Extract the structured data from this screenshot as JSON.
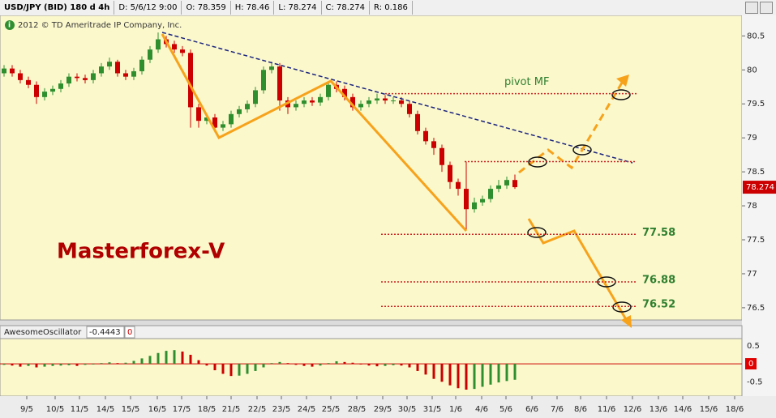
{
  "header": {
    "symbol": "USD/JPY (BID) 180 d 4h",
    "date": "D: 5/6/12 9:00",
    "open": "O: 78.359",
    "high": "H: 78.46",
    "low": "L: 78.274",
    "close": "C: 78.274",
    "range": "R: 0.186"
  },
  "copyright": "2012 © TD Ameritrade IP Company, Inc.",
  "chart_data": [
    {
      "type": "candlestick",
      "watermark": "Masterforex-V",
      "up_color": "#2f8f2f",
      "down_color": "#cc0000",
      "ylim": [
        76.32,
        80.79
      ],
      "yticks": [
        76.5,
        77,
        77.5,
        78,
        78.5,
        79,
        79.5,
        80,
        80.5
      ],
      "xlim": [
        -0.5,
        91.0
      ],
      "xticks": [
        {
          "value": 2.8,
          "label": "9/5"
        },
        {
          "value": 6.3,
          "label": "10/5"
        },
        {
          "value": 9.3,
          "label": "11/5"
        },
        {
          "value": 12.5,
          "label": "14/5"
        },
        {
          "value": 15.6,
          "label": "15/5"
        },
        {
          "value": 18.9,
          "label": "16/5"
        },
        {
          "value": 21.9,
          "label": "17/5"
        },
        {
          "value": 25.0,
          "label": "18/5"
        },
        {
          "value": 28.0,
          "label": "21/5"
        },
        {
          "value": 31.2,
          "label": "22/5"
        },
        {
          "value": 34.2,
          "label": "23/5"
        },
        {
          "value": 37.3,
          "label": "24/5"
        },
        {
          "value": 40.3,
          "label": "25/5"
        },
        {
          "value": 43.5,
          "label": "28/5"
        },
        {
          "value": 46.7,
          "label": "29/5"
        },
        {
          "value": 49.7,
          "label": "30/5"
        },
        {
          "value": 52.8,
          "label": "31/5"
        },
        {
          "value": 55.7,
          "label": "1/6"
        },
        {
          "value": 58.9,
          "label": "4/6"
        },
        {
          "value": 61.9,
          "label": "5/6"
        },
        {
          "value": 65.1,
          "label": "6/6"
        },
        {
          "value": 68.2,
          "label": "7/6"
        },
        {
          "value": 71.1,
          "label": "8/6"
        },
        {
          "value": 74.3,
          "label": "11/6"
        },
        {
          "value": 77.5,
          "label": "12/6"
        },
        {
          "value": 80.7,
          "label": "13/6"
        },
        {
          "value": 83.7,
          "label": "14/6"
        },
        {
          "value": 86.9,
          "label": "15/6"
        },
        {
          "value": 90.1,
          "label": "18/6"
        }
      ],
      "open": [
        79.95,
        80.02,
        79.95,
        79.85,
        79.78,
        79.6,
        79.68,
        79.72,
        79.8,
        79.9,
        79.88,
        79.85,
        79.95,
        80.05,
        80.12,
        79.95,
        79.9,
        79.98,
        80.15,
        80.3,
        80.45,
        80.38,
        80.3,
        80.25,
        79.45,
        79.25,
        79.3,
        79.15,
        79.2,
        79.35,
        79.42,
        79.5,
        79.7,
        80.0,
        80.05,
        79.55,
        79.45,
        79.5,
        79.55,
        79.52,
        79.6,
        79.78,
        79.72,
        79.6,
        79.45,
        79.5,
        79.55,
        79.58,
        79.55,
        79.55,
        79.5,
        79.35,
        79.1,
        78.95,
        78.85,
        78.6,
        78.35,
        78.25,
        77.95,
        78.05,
        78.1,
        78.25,
        78.3,
        78.38
      ],
      "high": [
        80.07,
        80.07,
        80.0,
        79.9,
        79.83,
        79.73,
        79.77,
        79.85,
        79.95,
        79.95,
        79.93,
        80.0,
        80.1,
        80.18,
        80.15,
        80.0,
        80.03,
        80.2,
        80.35,
        80.55,
        80.5,
        80.43,
        80.35,
        80.3,
        79.5,
        79.35,
        79.35,
        79.25,
        79.4,
        79.47,
        79.55,
        79.75,
        80.05,
        80.12,
        80.1,
        79.6,
        79.55,
        79.6,
        79.6,
        79.65,
        79.83,
        79.83,
        79.77,
        79.65,
        79.55,
        79.6,
        79.65,
        79.63,
        79.6,
        79.6,
        79.55,
        79.4,
        79.15,
        79.0,
        78.9,
        78.65,
        78.4,
        78.65,
        78.12,
        78.15,
        78.3,
        78.38,
        78.43,
        78.46
      ],
      "low": [
        79.9,
        79.9,
        79.8,
        79.73,
        79.5,
        79.55,
        79.63,
        79.67,
        79.75,
        79.83,
        79.8,
        79.8,
        79.9,
        80.0,
        79.9,
        79.85,
        79.85,
        79.93,
        80.1,
        80.25,
        80.33,
        80.25,
        80.2,
        79.15,
        79.15,
        79.2,
        79.08,
        79.1,
        79.15,
        79.3,
        79.37,
        79.45,
        79.65,
        79.95,
        79.4,
        79.35,
        79.4,
        79.45,
        79.47,
        79.47,
        79.55,
        79.67,
        79.55,
        79.4,
        79.4,
        79.45,
        79.5,
        79.5,
        79.5,
        79.45,
        79.3,
        79.05,
        78.9,
        78.75,
        78.5,
        78.25,
        78.15,
        77.65,
        77.9,
        78.0,
        78.05,
        78.2,
        78.25,
        78.25
      ],
      "close": [
        80.02,
        79.95,
        79.85,
        79.78,
        79.6,
        79.68,
        79.72,
        79.8,
        79.9,
        79.88,
        79.85,
        79.95,
        80.05,
        80.12,
        79.95,
        79.9,
        79.98,
        80.15,
        80.3,
        80.45,
        80.38,
        80.3,
        80.25,
        79.45,
        79.25,
        79.3,
        79.15,
        79.2,
        79.35,
        79.42,
        79.5,
        79.7,
        80.0,
        80.05,
        79.55,
        79.45,
        79.5,
        79.55,
        79.52,
        79.6,
        79.78,
        79.72,
        79.6,
        79.45,
        79.5,
        79.55,
        79.58,
        79.55,
        79.55,
        79.5,
        79.35,
        79.1,
        78.95,
        78.85,
        78.6,
        78.35,
        78.25,
        77.95,
        78.05,
        78.1,
        78.25,
        78.3,
        78.38,
        78.274
      ],
      "levels": [
        {
          "value": 79.65,
          "label": "pivot MF"
        },
        78.65,
        77.58,
        76.88,
        76.52
      ]
    },
    {
      "type": "bar",
      "title": "AwesomeOscillator",
      "param": "0",
      "up_color": "#2f8f2f",
      "down_color": "#cc0000",
      "ylim": [
        -0.9,
        0.7
      ],
      "yticks": [
        0.5,
        0,
        -0.5
      ],
      "values": [
        -0.03,
        -0.05,
        -0.08,
        -0.06,
        -0.1,
        -0.08,
        -0.06,
        -0.05,
        -0.04,
        -0.06,
        -0.03,
        -0.02,
        0.02,
        0.04,
        0.02,
        0.03,
        0.08,
        0.15,
        0.22,
        0.3,
        0.36,
        0.38,
        0.34,
        0.25,
        0.1,
        -0.05,
        -0.18,
        -0.28,
        -0.34,
        -0.33,
        -0.28,
        -0.2,
        -0.1,
        0.02,
        0.05,
        0.02,
        -0.03,
        -0.06,
        -0.08,
        -0.05,
        0.02,
        0.07,
        0.05,
        0.03,
        -0.02,
        -0.05,
        -0.07,
        -0.06,
        -0.04,
        -0.05,
        -0.1,
        -0.2,
        -0.3,
        -0.42,
        -0.5,
        -0.6,
        -0.68,
        -0.72,
        -0.7,
        -0.64,
        -0.58,
        -0.52,
        -0.48,
        -0.4443
      ]
    }
  ]
}
